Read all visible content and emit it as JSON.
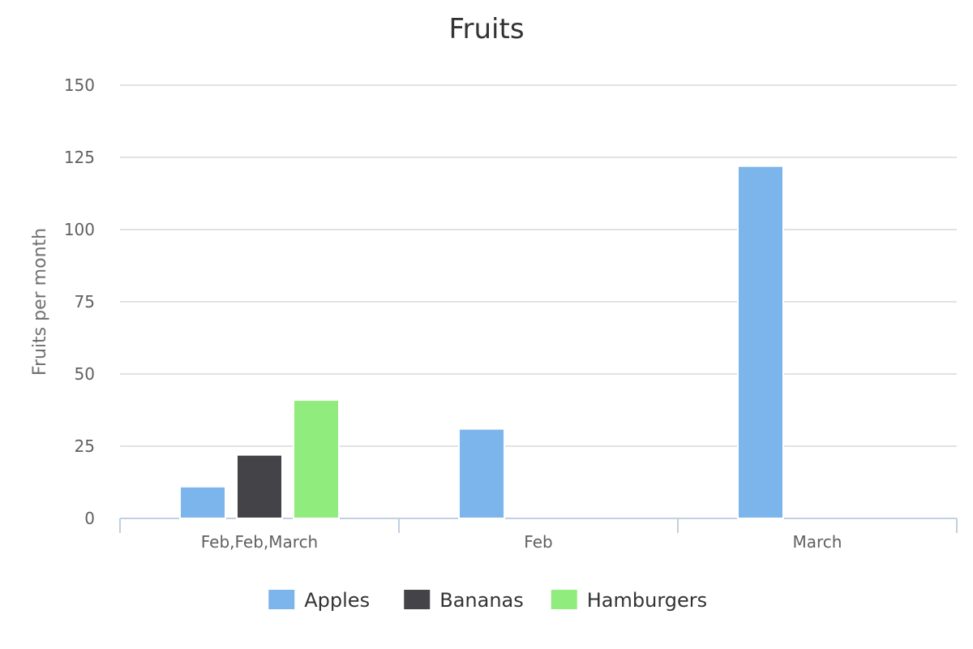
{
  "chart_data": {
    "type": "bar",
    "title": "Fruits",
    "ylabel": "Fruits per month",
    "xlabel": "",
    "categories": [
      "Feb,Feb,March",
      "Feb",
      "March"
    ],
    "ylim": [
      0,
      150
    ],
    "yticks": [
      0,
      25,
      50,
      75,
      100,
      125,
      150
    ],
    "grid": true,
    "legend_position": "bottom",
    "series": [
      {
        "name": "Apples",
        "color": "#7cb5ec",
        "values": [
          11,
          31,
          122
        ]
      },
      {
        "name": "Bananas",
        "color": "#434348",
        "values": [
          22,
          null,
          null
        ]
      },
      {
        "name": "Hamburgers",
        "color": "#90ed7d",
        "values": [
          41,
          null,
          null
        ]
      }
    ]
  }
}
